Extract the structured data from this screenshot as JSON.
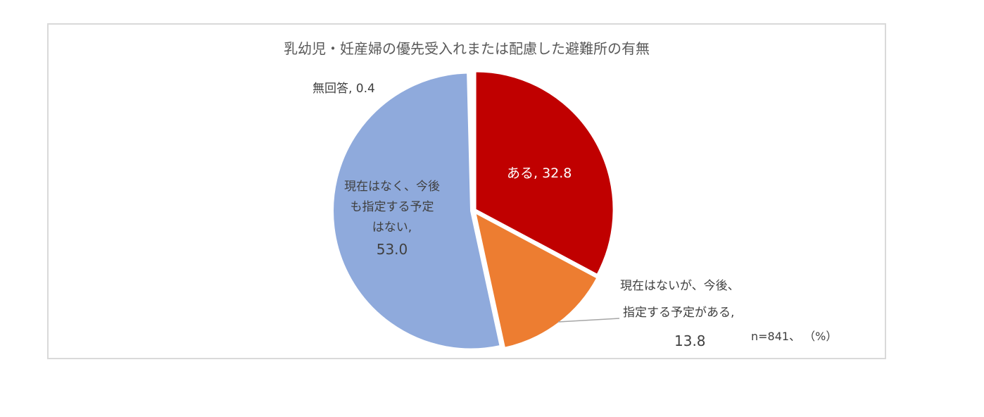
{
  "chart_data": {
    "type": "pie",
    "title": "乳幼児・妊産婦の優先受入れまたは配慮した避難所の有無",
    "unit": "%",
    "sample_size": "n=841",
    "note": "n=841、（%）",
    "start_angle_deg": 0,
    "direction": "clockwise",
    "slices": [
      {
        "label": "ある",
        "value": 32.8,
        "color": "#C00000"
      },
      {
        "label": "現在はないが、今後、指定する予定がある",
        "value": 13.8,
        "color": "#ED7D31"
      },
      {
        "label": "現在はなく、今後も指定する予定はない",
        "value": 53.0,
        "color": "#8FAADC"
      },
      {
        "label": "無回答",
        "value": 0.4,
        "color": "#D9D9D9"
      }
    ],
    "legend": "none (data labels on slices)"
  },
  "labels": {
    "title": "乳幼児・妊産婦の優先受入れまたは配慮した避難所の有無",
    "no_answer": "無回答, 0.4",
    "yes": "ある, 32.8",
    "planned_line1": "現在はないが、今後、",
    "planned_line2": "指定する予定がある,",
    "planned_value": "13.8",
    "not_planned_line1": "現在はなく、今後",
    "not_planned_line2": "も指定する予定",
    "not_planned_line3": "はない,",
    "not_planned_value": "53.0",
    "note": "n=841、 （%）"
  }
}
